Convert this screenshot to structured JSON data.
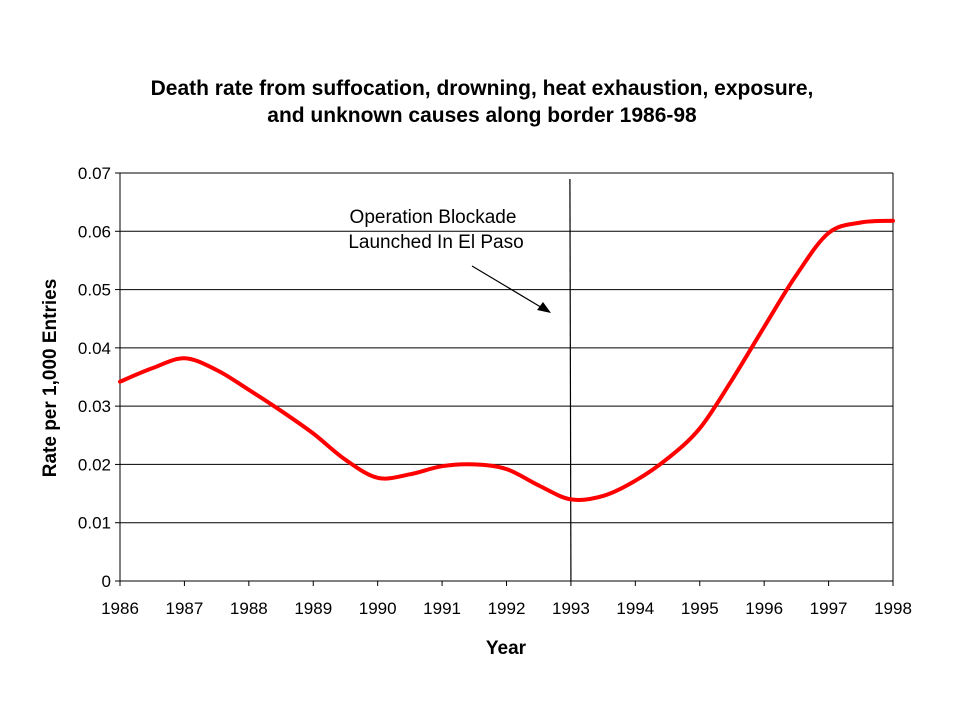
{
  "chart_data": {
    "type": "line",
    "title_lines": [
      "Death rate from suffocation, drowning, heat exhaustion, exposure,",
      "and unknown causes along border 1986-98"
    ],
    "xlabel": "Year",
    "ylabel": "Rate per 1,000 Entries",
    "x_ticks": [
      "1986",
      "1987",
      "1988",
      "1989",
      "1990",
      "1991",
      "1992",
      "1993",
      "1994",
      "1995",
      "1996",
      "1997",
      "1998"
    ],
    "y_ticks": [
      "0",
      "0.01",
      "0.02",
      "0.03",
      "0.04",
      "0.05",
      "0.06",
      "0.07"
    ],
    "xlim": [
      1986,
      1998
    ],
    "ylim": [
      0,
      0.07
    ],
    "grid": "horizontal",
    "legend": "none",
    "series": [
      {
        "color": "#ff0000",
        "x": [
          1986,
          1986.5,
          1987,
          1987.5,
          1988,
          1988.5,
          1989,
          1989.5,
          1990,
          1990.5,
          1991,
          1991.5,
          1992,
          1992.5,
          1993,
          1993.5,
          1994,
          1994.5,
          1995,
          1995.5,
          1996,
          1996.5,
          1997,
          1997.5,
          1998
        ],
        "values": [
          0.0342,
          0.0365,
          0.0382,
          0.0362,
          0.0328,
          0.0292,
          0.0253,
          0.0208,
          0.0177,
          0.0183,
          0.0197,
          0.02,
          0.0192,
          0.0164,
          0.014,
          0.0146,
          0.0172,
          0.021,
          0.0262,
          0.0345,
          0.0436,
          0.0525,
          0.0597,
          0.0615,
          0.0618
        ]
      }
    ],
    "annotation": {
      "lines": [
        "Operation Blockade",
        "Launched In El Paso"
      ],
      "x": 1993
    }
  }
}
